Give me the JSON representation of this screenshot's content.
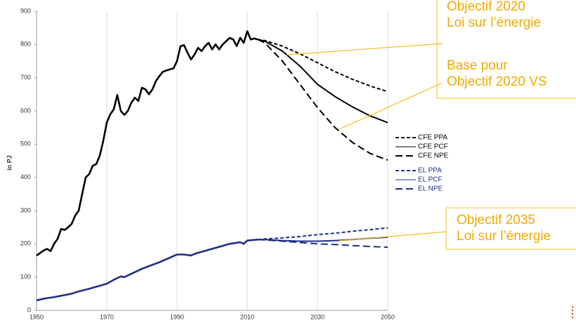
{
  "chart_data": {
    "type": "line",
    "y_label": "in PJ",
    "xlim": [
      1950,
      2050
    ],
    "ylim": [
      0,
      900
    ],
    "xticks": [
      1950,
      1970,
      1990,
      2010,
      2030,
      2050
    ],
    "yticks": [
      0,
      100,
      200,
      300,
      400,
      500,
      600,
      700,
      800,
      900
    ],
    "grid": "x",
    "series": [
      {
        "color": "#000000",
        "dash": "solid",
        "x": [
          1950,
          1952,
          1953,
          1954,
          1955,
          1956,
          1957,
          1958,
          1959,
          1960,
          1961,
          1962,
          1963,
          1964,
          1965,
          1966,
          1967,
          1968,
          1969,
          1970,
          1971,
          1972,
          1973,
          1974,
          1975,
          1976,
          1977,
          1978,
          1979,
          1980,
          1981,
          1982,
          1983,
          1984,
          1985,
          1986,
          1987,
          1988,
          1989,
          1990,
          1991,
          1992,
          1993,
          1994,
          1995,
          1996,
          1997,
          1998,
          1999,
          2000,
          2001,
          2002,
          2003,
          2004,
          2005,
          2006,
          2007,
          2008,
          2009,
          2010,
          2011,
          2012,
          2013
        ],
        "values": [
          165,
          180,
          185,
          178,
          200,
          215,
          245,
          242,
          250,
          260,
          285,
          300,
          350,
          400,
          410,
          435,
          440,
          465,
          510,
          565,
          590,
          605,
          648,
          600,
          588,
          600,
          625,
          640,
          630,
          670,
          665,
          650,
          665,
          690,
          705,
          718,
          722,
          725,
          728,
          750,
          795,
          798,
          775,
          755,
          770,
          790,
          780,
          795,
          805,
          785,
          800,
          785,
          800,
          810,
          820,
          815,
          795,
          820,
          805,
          840,
          815,
          818,
          815
        ]
      },
      {
        "name": "CFE PPA",
        "color": "#000000",
        "dash": "short",
        "x": [
          2013,
          2015,
          2020,
          2025,
          2030,
          2035,
          2040,
          2045,
          2050
        ],
        "values": [
          815,
          812,
          795,
          772,
          745,
          718,
          695,
          675,
          658
        ]
      },
      {
        "name": "CFE PCF",
        "color": "#000000",
        "dash": "solid",
        "x": [
          2013,
          2015,
          2020,
          2025,
          2030,
          2035,
          2040,
          2045,
          2050
        ],
        "values": [
          815,
          810,
          780,
          735,
          680,
          643,
          612,
          585,
          565
        ]
      },
      {
        "name": "CFE NPE",
        "color": "#000000",
        "dash": "long",
        "x": [
          2013,
          2015,
          2020,
          2025,
          2030,
          2035,
          2040,
          2045,
          2050
        ],
        "values": [
          815,
          805,
          750,
          680,
          610,
          550,
          505,
          472,
          452
        ]
      },
      {
        "color": "#1f2d86",
        "dash": "solid",
        "x": [
          1950,
          1952,
          1955,
          1960,
          1962,
          1965,
          1970,
          1972,
          1974,
          1975,
          1978,
          1980,
          1985,
          1990,
          1992,
          1994,
          1995,
          2000,
          2005,
          2008,
          2009,
          2010,
          2013
        ],
        "values": [
          30,
          35,
          40,
          50,
          57,
          65,
          80,
          92,
          102,
          100,
          115,
          125,
          145,
          168,
          168,
          165,
          170,
          185,
          200,
          205,
          200,
          210,
          213
        ]
      },
      {
        "name": "EL PPA",
        "color": "#1f2d86",
        "dash": "short",
        "x": [
          2013,
          2015,
          2020,
          2025,
          2030,
          2035,
          2040,
          2045,
          2050
        ],
        "values": [
          213,
          215,
          218,
          222,
          228,
          232,
          238,
          243,
          248
        ]
      },
      {
        "name": "EL PCF",
        "color": "#1f2d86",
        "dash": "solid",
        "x": [
          2013,
          2015,
          2020,
          2025,
          2030,
          2035,
          2040,
          2045,
          2050
        ],
        "values": [
          213,
          213,
          210,
          208,
          208,
          210,
          213,
          217,
          220
        ]
      },
      {
        "name": "EL NPE",
        "color": "#1f2d86",
        "dash": "long",
        "x": [
          2013,
          2015,
          2020,
          2025,
          2030,
          2035,
          2040,
          2045,
          2050
        ],
        "values": [
          213,
          212,
          208,
          204,
          200,
          198,
          195,
          192,
          190
        ]
      }
    ],
    "annotations": [
      {
        "lines": [
          "Objectif 2020",
          "Loi sur l’énergie"
        ]
      },
      {
        "lines": [
          "Base pour",
          "Objectif 2020 VS"
        ]
      },
      {
        "lines": [
          "Objectif 2035",
          "Loi sur l’énergie"
        ]
      }
    ]
  }
}
